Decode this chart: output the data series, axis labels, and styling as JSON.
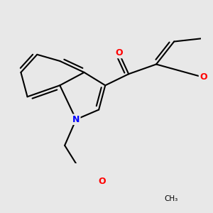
{
  "background_color": "#e8e8e8",
  "bond_color": "#000000",
  "bond_width": 1.5,
  "atom_colors": {
    "O": "#ff0000",
    "N": "#0000ff",
    "C": "#000000"
  },
  "font_size": 9
}
